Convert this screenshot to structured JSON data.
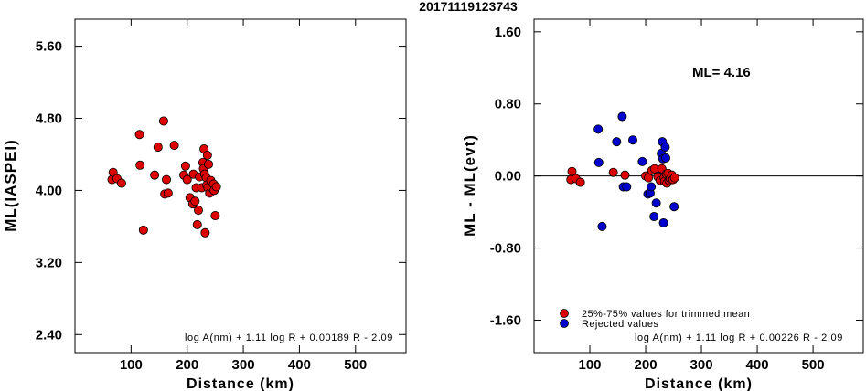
{
  "figure_title": "20171119123743",
  "colors": {
    "accepted": "#dd0000",
    "rejected": "#0000cc",
    "marker_edge": "#000000"
  },
  "chart_data": [
    {
      "type": "scatter",
      "ylabel": "ML(IASPEI)",
      "xlabel": "Distance (km)",
      "xlim": [
        0,
        590
      ],
      "ylim": [
        2.2,
        5.9
      ],
      "xticks": [
        "100",
        "200",
        "300",
        "400",
        "500"
      ],
      "yticks": [
        "2.40",
        "3.20",
        "4.00",
        "4.80",
        "5.60"
      ],
      "formula": "log A(nm) + 1.11 log R + 0.00189 R - 2.09",
      "series": [
        {
          "color": "#dd0000",
          "points": [
            [
              66,
              4.12
            ],
            [
              68,
              4.2
            ],
            [
              75,
              4.13
            ],
            [
              83,
              4.08
            ],
            [
              115,
              4.62
            ],
            [
              116,
              4.28
            ],
            [
              122,
              3.56
            ],
            [
              142,
              4.17
            ],
            [
              148,
              4.48
            ],
            [
              158,
              4.77
            ],
            [
              160,
              3.96
            ],
            [
              163,
              4.12
            ],
            [
              166,
              3.97
            ],
            [
              177,
              4.5
            ],
            [
              194,
              4.17
            ],
            [
              197,
              4.27
            ],
            [
              200,
              4.12
            ],
            [
              205,
              3.92
            ],
            [
              210,
              3.85
            ],
            [
              211,
              4.18
            ],
            [
              214,
              3.88
            ],
            [
              216,
              4.03
            ],
            [
              218,
              3.62
            ],
            [
              220,
              3.78
            ],
            [
              222,
              4.15
            ],
            [
              226,
              4.03
            ],
            [
              228,
              4.31
            ],
            [
              229,
              4.24
            ],
            [
              230,
              4.46
            ],
            [
              231,
              4.18
            ],
            [
              232,
              3.53
            ],
            [
              234,
              4.14
            ],
            [
              235,
              4.06
            ],
            [
              236,
              4.39
            ],
            [
              237,
              4.03
            ],
            [
              238,
              4.29
            ],
            [
              240,
              3.97
            ],
            [
              242,
              4.11
            ],
            [
              244,
              4.03
            ],
            [
              247,
              4.07
            ],
            [
              248,
              4.0
            ],
            [
              250,
              3.72
            ],
            [
              252,
              4.04
            ]
          ]
        }
      ]
    },
    {
      "type": "scatter",
      "ylabel": "ML - ML(evt)",
      "xlabel": "Distance (km)",
      "xlim": [
        0,
        590
      ],
      "ylim": [
        -1.96,
        1.74
      ],
      "xticks": [
        "100",
        "200",
        "300",
        "400",
        "500"
      ],
      "yticks": [
        "-1.60",
        "-0.80",
        "0.00",
        "0.80",
        "1.60"
      ],
      "reference_line": 0,
      "ml_label": "ML= 4.16",
      "formula": "log A(nm) + 1.11 log R + 0.00226 R - 2.09",
      "legend": {
        "position": "bottom-left",
        "items": [
          {
            "label": "25%-75% values for trimmed mean",
            "color": "#dd0000"
          },
          {
            "label": "Rejected values",
            "color": "#0000cc"
          }
        ]
      },
      "series": [
        {
          "color": "#0000cc",
          "points": [
            [
              115,
              0.52
            ],
            [
              116,
              0.15
            ],
            [
              122,
              -0.56
            ],
            [
              148,
              0.38
            ],
            [
              158,
              0.66
            ],
            [
              160,
              -0.12
            ],
            [
              166,
              -0.12
            ],
            [
              177,
              0.4
            ],
            [
              194,
              0.16
            ],
            [
              204,
              -0.2
            ],
            [
              208,
              -0.19
            ],
            [
              210,
              -0.12
            ],
            [
              215,
              -0.45
            ],
            [
              219,
              -0.3
            ],
            [
              224,
              0.04
            ],
            [
              228,
              0.25
            ],
            [
              230,
              0.38
            ],
            [
              231,
              0.19
            ],
            [
              232,
              -0.52
            ],
            [
              235,
              0.32
            ],
            [
              236,
              0.2
            ],
            [
              251,
              -0.34
            ]
          ]
        },
        {
          "color": "#dd0000",
          "points": [
            [
              66,
              -0.04
            ],
            [
              68,
              0.05
            ],
            [
              75,
              -0.03
            ],
            [
              83,
              -0.07
            ],
            [
              142,
              0.04
            ],
            [
              163,
              0.01
            ],
            [
              200,
              0.0
            ],
            [
              205,
              -0.02
            ],
            [
              211,
              0.06
            ],
            [
              216,
              0.08
            ],
            [
              222,
              -0.01
            ],
            [
              226,
              -0.05
            ],
            [
              229,
              0.08
            ],
            [
              233,
              -0.02
            ],
            [
              234,
              -0.06
            ],
            [
              237,
              0.02
            ],
            [
              238,
              -0.08
            ],
            [
              240,
              0.03
            ],
            [
              242,
              -0.05
            ],
            [
              244,
              -0.03
            ],
            [
              247,
              0.01
            ],
            [
              249,
              -0.04
            ],
            [
              252,
              -0.02
            ]
          ]
        }
      ]
    }
  ]
}
